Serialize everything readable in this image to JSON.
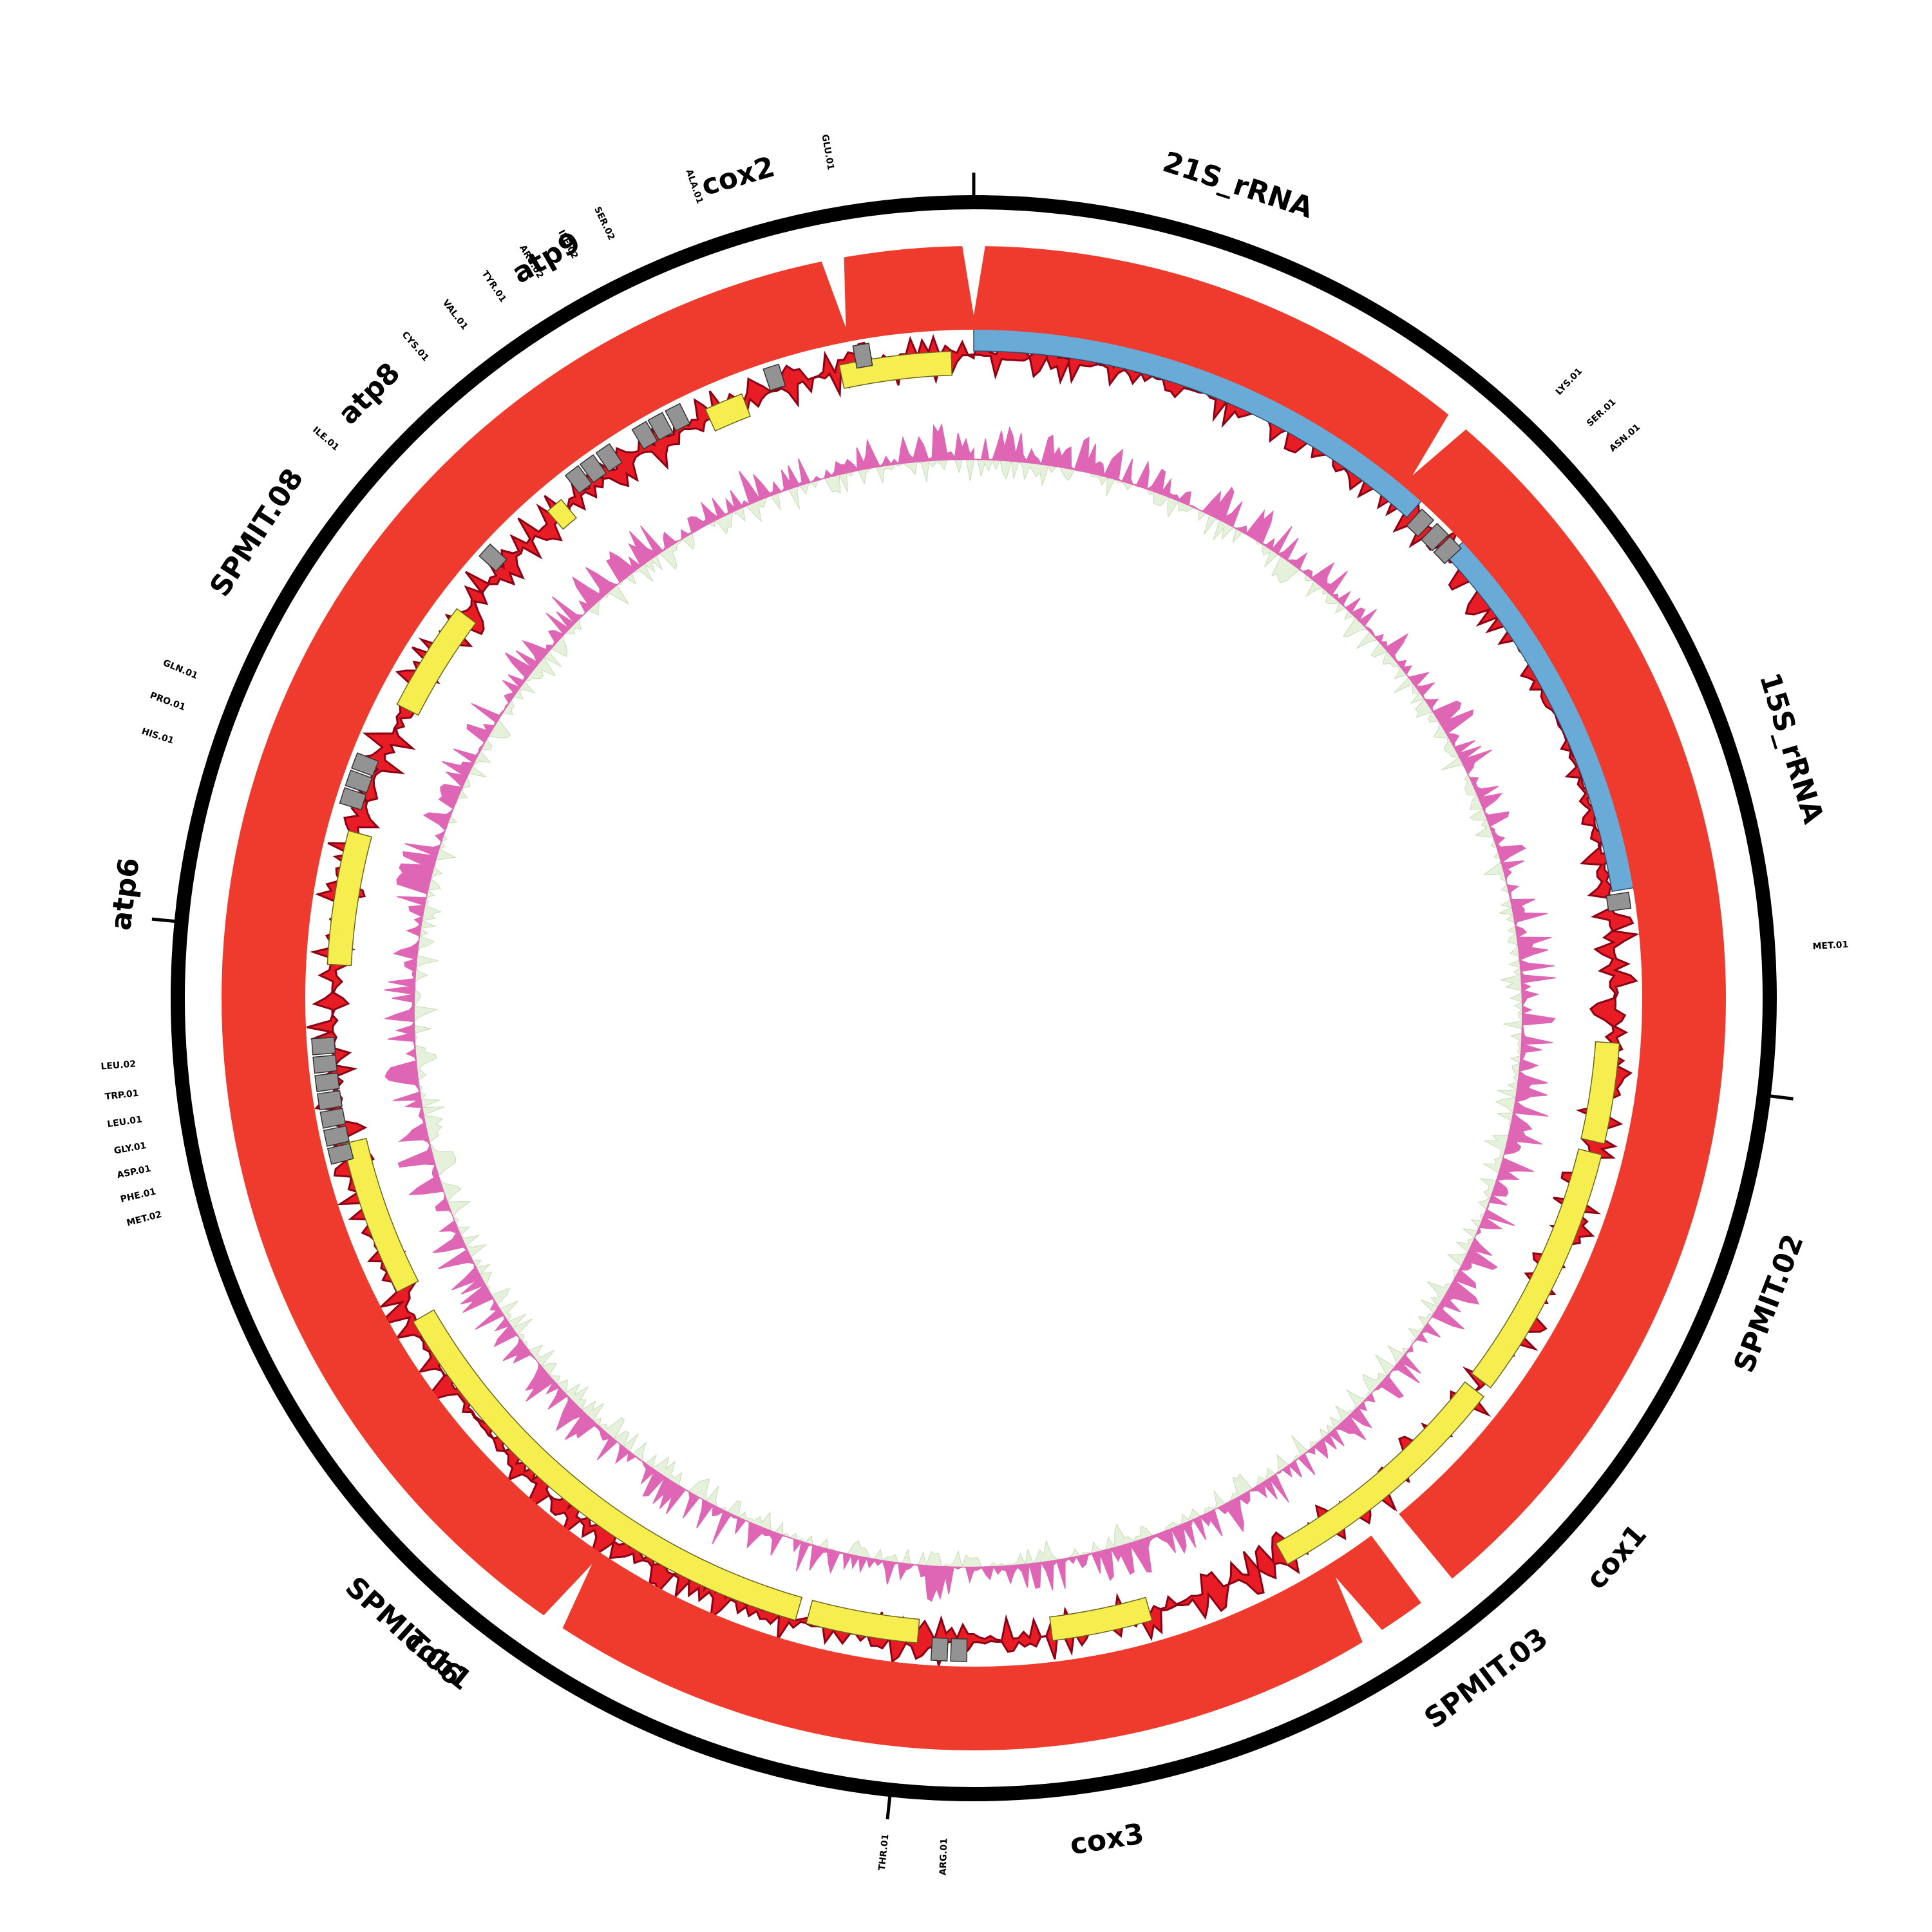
{
  "colors": {
    "outer_ring": "#000000",
    "coverage_band": "#ee3b2e",
    "rrna": "#6aaad6",
    "cds": "#f6ee4e",
    "trna": "#939393",
    "signal_red": "#e81c24",
    "signal_dark": "#8c0016",
    "gc_pink": "#de66b4",
    "gc_pale": "#e6f1dc"
  },
  "gene_labels": [
    {
      "id": "cox2",
      "text": "cox2",
      "angle": -16
    },
    {
      "id": "21s-rrna",
      "text": "21S_rRNA",
      "angle": 18
    },
    {
      "id": "atp9",
      "text": "atp9",
      "angle": -30
    },
    {
      "id": "atp8",
      "text": "atp8",
      "angle": -45
    },
    {
      "id": "spmit08",
      "text": "SPMIT.08",
      "angle": -57
    },
    {
      "id": "15s-rrna",
      "text": "15S_rRNA",
      "angle": 73
    },
    {
      "id": "atp6",
      "text": "atp6",
      "angle": -83
    },
    {
      "id": "spmit02",
      "text": "SPMIT.02",
      "angle": 111
    },
    {
      "id": "cox1",
      "text": "cox1",
      "angle": 131
    },
    {
      "id": "spmit03",
      "text": "SPMIT.03",
      "angle": 143
    },
    {
      "id": "cox3",
      "text": "cox3",
      "angle": 171
    },
    {
      "id": "cob1",
      "text": "cob1",
      "angle": -141
    },
    {
      "id": "spmit06",
      "text": "SPMIT.06",
      "angle": -138
    }
  ],
  "trna_labels": [
    {
      "text": "GLU.01",
      "angle": -9.8
    },
    {
      "text": "ALA.01",
      "angle": -19
    },
    {
      "text": "SER.02",
      "angle": -25.5
    },
    {
      "text": "ILE.02",
      "angle": -28.3
    },
    {
      "text": "ARG.02",
      "angle": -31
    },
    {
      "text": "TYR.01",
      "angle": -34
    },
    {
      "text": "VAL.01",
      "angle": -37.2
    },
    {
      "text": "CYS.01",
      "angle": -40.6
    },
    {
      "text": "ILE.01",
      "angle": -49.2
    },
    {
      "text": "LYS.01",
      "angle": 44
    },
    {
      "text": "SER.01",
      "angle": 47
    },
    {
      "text": "ASN.01",
      "angle": 49.3
    },
    {
      "text": "MET.01",
      "angle": 86.5
    },
    {
      "text": "GLN.01",
      "angle": -67.5
    },
    {
      "text": "PRO.01",
      "angle": -69.8
    },
    {
      "text": "HIS.01",
      "angle": -72.2
    },
    {
      "text": "LEU.02",
      "angle": -94.5
    },
    {
      "text": "TRP.01",
      "angle": -96.5
    },
    {
      "text": "LEU.01",
      "angle": -98.3
    },
    {
      "text": "GLY.01",
      "angle": -100.1
    },
    {
      "text": "ASP.01",
      "angle": -101.7
    },
    {
      "text": "PHE.01",
      "angle": -103.3
    },
    {
      "text": "MET.02",
      "angle": -104.9
    },
    {
      "text": "THR.01",
      "angle": 186
    },
    {
      "text": "ARG.01",
      "angle": 182
    }
  ],
  "tick_marks": [
    {
      "angle": 0
    },
    {
      "angle": -84.5
    },
    {
      "angle": 97
    },
    {
      "angle": 186
    }
  ],
  "coverage_gaps": [
    {
      "angle": -10.8
    },
    {
      "angle": 0
    },
    {
      "angle": 40
    },
    {
      "angle": 148
    },
    {
      "angle": -146
    }
  ],
  "rrna_blocks": [
    {
      "name": "21S_rRNA",
      "start": 0,
      "end": 42
    },
    {
      "name": "15S_rRNA",
      "start": 47,
      "end": 80.5
    }
  ],
  "cds_blocks": [
    {
      "name": "cox2",
      "start": -12,
      "end": -2
    },
    {
      "name": "atp9",
      "start": -24.5,
      "end": -21
    },
    {
      "name": "atp8",
      "start": -41.2,
      "end": -39.6
    },
    {
      "name": "SPMIT.08",
      "start": -63,
      "end": -53
    },
    {
      "name": "atp6",
      "start": -87,
      "end": -75
    },
    {
      "name": "SPMIT.02",
      "start": 94,
      "end": 103
    },
    {
      "name": "SPMIT.02b",
      "start": 104,
      "end": 127
    },
    {
      "name": "cox1",
      "start": 128,
      "end": 151
    },
    {
      "name": "cox3",
      "start": 164,
      "end": 173
    },
    {
      "name": "cob1",
      "start": 185,
      "end": 195
    },
    {
      "name": "SPMIT.06",
      "start": 196,
      "end": 240
    },
    {
      "name": "SPMIT.06b",
      "start": 243,
      "end": 257
    }
  ],
  "trna_blocks": [
    {
      "name": "GLU.01",
      "angle": -9.8
    },
    {
      "name": "ALA.01",
      "angle": -17.8
    },
    {
      "name": "SER.02",
      "angle": -27
    },
    {
      "name": "ILE.02",
      "angle": -28.7
    },
    {
      "name": "ARG.02",
      "angle": -30.3
    },
    {
      "name": "TYR.01",
      "angle": -34
    },
    {
      "name": "VAL.01",
      "angle": -35.7
    },
    {
      "name": "CYS.01",
      "angle": -37.3
    },
    {
      "name": "ILE.01",
      "angle": -47.5
    },
    {
      "name": "LYS.01",
      "angle": 43.2
    },
    {
      "name": "SER.01",
      "angle": 45
    },
    {
      "name": "ASN.01",
      "angle": 46.6
    },
    {
      "name": "MET.01",
      "angle": 81.5
    },
    {
      "name": "GLN.01",
      "angle": -69
    },
    {
      "name": "PRO.01",
      "angle": -70.6
    },
    {
      "name": "HIS.01",
      "angle": -72.2
    },
    {
      "name": "LEU.02",
      "angle": -94.2
    },
    {
      "name": "TRP.01",
      "angle": -95.8
    },
    {
      "name": "LEU.01",
      "angle": -97.4
    },
    {
      "name": "GLY.01",
      "angle": -99
    },
    {
      "name": "ASP.01",
      "angle": -100.6
    },
    {
      "name": "PHE.01",
      "angle": -102.2
    },
    {
      "name": "MET.02",
      "angle": -103.8
    },
    {
      "name": "THR.01",
      "angle": 183
    },
    {
      "name": "ARG.01",
      "angle": 181.3
    }
  ]
}
